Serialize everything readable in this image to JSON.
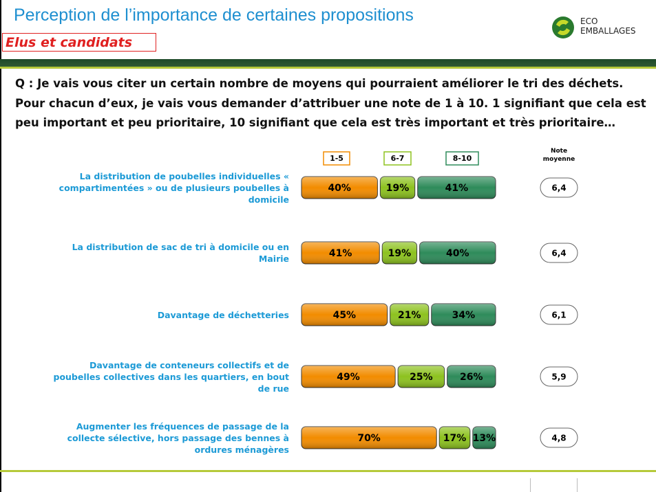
{
  "header": {
    "title": "Perception de l’importance de certaines propositions",
    "subtitle": "Elus et candidats",
    "logo": [
      "ECO",
      "EMBALLAGES"
    ]
  },
  "question": "Q  : Je vais vous citer un certain nombre de moyens qui pourraient améliorer le tri des déchets. Pour chacun d’eux, je vais vous demander d’attribuer une note de 1 à 10. 1 signifiant que cela est peu important et peu prioritaire, 10 signifiant que cela est très important et très prioritaire…",
  "chart_data": {
    "type": "bar",
    "orientation": "horizontal",
    "stacked": true,
    "categories": [
      "La distribution de poubelles individuelles « compartimentées » ou de plusieurs poubelles à domicile",
      "La distribution de sac de tri à domicile ou en Mairie",
      "Davantage de déchetteries",
      "Davantage de conteneurs collectifs et de poubelles collectives dans les quartiers, en bout de rue",
      "Augmenter les fréquences de passage de la collecte sélective, hors passage des bennes à ordures ménagères"
    ],
    "series": [
      {
        "name": "1-5",
        "color": "#f28c00",
        "values": [
          40,
          41,
          45,
          49,
          70
        ],
        "value_labels": [
          "40%",
          "41%",
          "45%",
          "49%",
          "70%"
        ]
      },
      {
        "name": "6-7",
        "color": "#8dc21f",
        "values": [
          19,
          19,
          21,
          25,
          17
        ],
        "value_labels": [
          "19%",
          "19%",
          "21%",
          "25%",
          "17%"
        ]
      },
      {
        "name": "8-10",
        "color": "#2e8b5a",
        "values": [
          41,
          40,
          34,
          26,
          13
        ],
        "value_labels": [
          "41%",
          "40%",
          "34%",
          "26%",
          "13%"
        ]
      }
    ],
    "xlim": [
      0,
      100
    ],
    "note_moyenne": {
      "title": "Note moyenne",
      "values": [
        6.4,
        6.4,
        6.1,
        5.9,
        4.8
      ],
      "value_labels": [
        "6,4",
        "6,4",
        "6,1",
        "5,9",
        "4,8"
      ]
    }
  }
}
